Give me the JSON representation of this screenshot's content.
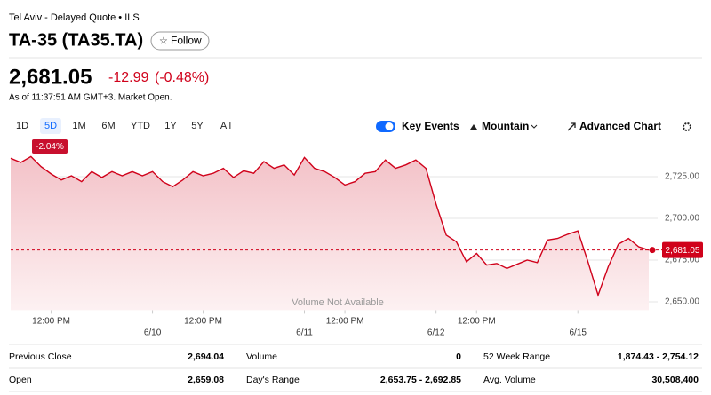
{
  "header": {
    "exchange": "Tel Aviv - Delayed Quote • ILS",
    "title": "TA-35 (TA35.TA)",
    "follow": "Follow",
    "price": "2,681.05",
    "change": "-12.99",
    "change_pct": "(-0.48%)",
    "as_of": "As of 11:37:51 AM GMT+3. Market Open."
  },
  "toolbar": {
    "ranges": [
      "1D",
      "5D",
      "1M",
      "6M",
      "YTD",
      "1Y",
      "5Y",
      "All"
    ],
    "range_change": "-2.04%",
    "key_events": "Key Events",
    "chart_style": "Mountain",
    "advanced": "Advanced Chart"
  },
  "chart_data": {
    "type": "area",
    "color": "#d0021b",
    "values": [
      2736,
      2733.5,
      2737,
      2731,
      2726.6,
      2723,
      2725.5,
      2722,
      2728,
      2724.5,
      2728,
      2725.5,
      2728,
      2725.5,
      2728,
      2722,
      2719,
      2723,
      2728,
      2725.5,
      2727,
      2730,
      2724.5,
      2728.5,
      2727,
      2734,
      2730,
      2732,
      2726,
      2736.5,
      2730,
      2728,
      2724.5,
      2720,
      2722,
      2727,
      2728,
      2735,
      2730,
      2732,
      2735,
      2730,
      2708.5,
      2690,
      2686,
      2674,
      2679,
      2672,
      2673,
      2670,
      2672.5,
      2675,
      2673.5,
      2687,
      2688,
      2690.5,
      2692.5,
      2674,
      2654,
      2671,
      2684.5,
      2688,
      2683,
      2681
    ],
    "xlim": [
      0,
      63
    ],
    "xticks": [
      {
        "value": 4,
        "label": "12:00 PM"
      },
      {
        "value": 14,
        "label": "6/10"
      },
      {
        "value": 19,
        "label": "12:00 PM"
      },
      {
        "value": 29,
        "label": "6/11"
      },
      {
        "value": 33,
        "label": "12:00 PM"
      },
      {
        "value": 42,
        "label": "6/12"
      },
      {
        "value": 46,
        "label": "12:00 PM"
      },
      {
        "value": 56,
        "label": "6/15"
      }
    ],
    "ylim": [
      2645,
      2746
    ],
    "yticks": [
      {
        "value": 2725,
        "label": "2,725.00"
      },
      {
        "value": 2700,
        "label": "2,700.00"
      },
      {
        "value": 2675,
        "label": "2,675.00"
      },
      {
        "value": 2650,
        "label": "2,650.00"
      }
    ],
    "current": {
      "value": 2681.05,
      "label": "2,681.05"
    },
    "annotation": "Volume Not Available"
  },
  "stats": [
    [
      "Previous Close",
      "2,694.04",
      "Volume",
      "0",
      "52 Week Range",
      "1,874.43 - 2,754.12"
    ],
    [
      "Open",
      "2,659.08",
      "Day's Range",
      "2,653.75 - 2,692.85",
      "Avg. Volume",
      "30,508,400"
    ]
  ]
}
